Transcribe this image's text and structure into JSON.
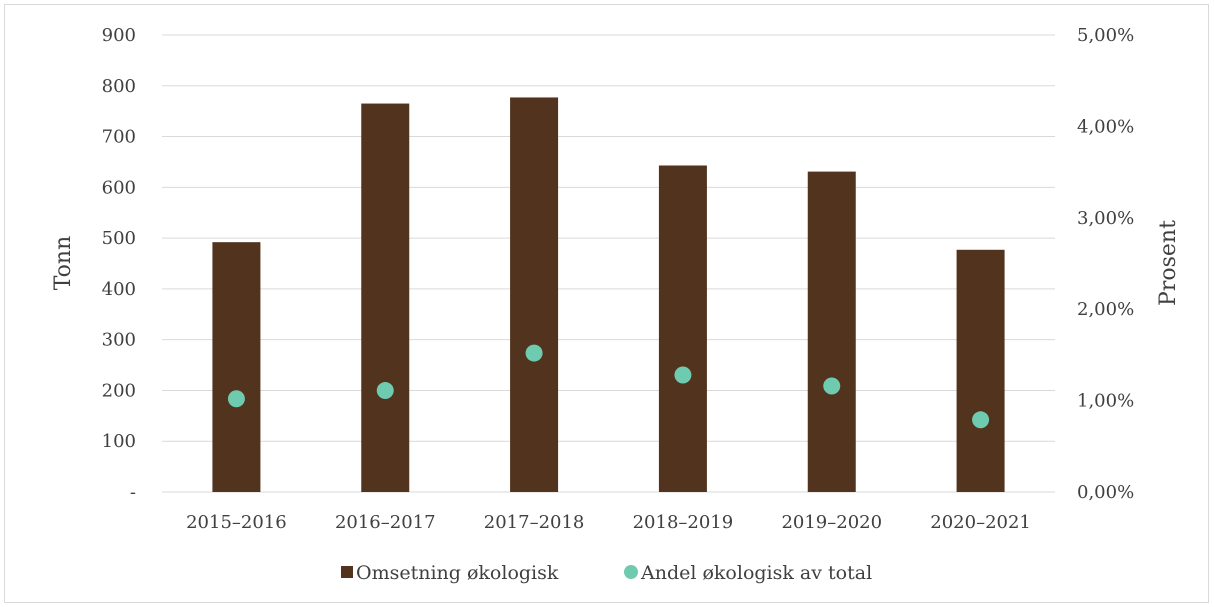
{
  "chart_data": {
    "type": "bar",
    "title": "",
    "categories": [
      "2015–2016",
      "2016–2017",
      "2017–2018",
      "2018–2019",
      "2019–2020",
      "2020–2021"
    ],
    "series": [
      {
        "name": "Omsetning økologisk",
        "type": "bar",
        "axis": "left",
        "color": "#52331D",
        "values": [
          492,
          765,
          777,
          643,
          631,
          477
        ]
      },
      {
        "name": "Andel økologisk av total",
        "type": "scatter",
        "axis": "right",
        "color": "#6FCBB0",
        "values": [
          1.02,
          1.11,
          1.52,
          1.28,
          1.16,
          0.79
        ]
      }
    ],
    "y_left": {
      "label": "Tonn",
      "ylim": [
        0,
        900
      ],
      "ticks": [
        0,
        100,
        200,
        300,
        400,
        500,
        600,
        700,
        800,
        900
      ],
      "tick_labels": [
        "-",
        "100",
        "200",
        "300",
        "400",
        "500",
        "600",
        "700",
        "800",
        "900"
      ]
    },
    "y_right": {
      "label": "Prosent",
      "ylim": [
        0,
        5
      ],
      "ticks": [
        0,
        1,
        2,
        3,
        4,
        5
      ],
      "tick_labels": [
        "0,00%",
        "1,00%",
        "2,00%",
        "3,00%",
        "4,00%",
        "5,00%"
      ]
    },
    "grid": true,
    "legend": "bottom"
  }
}
